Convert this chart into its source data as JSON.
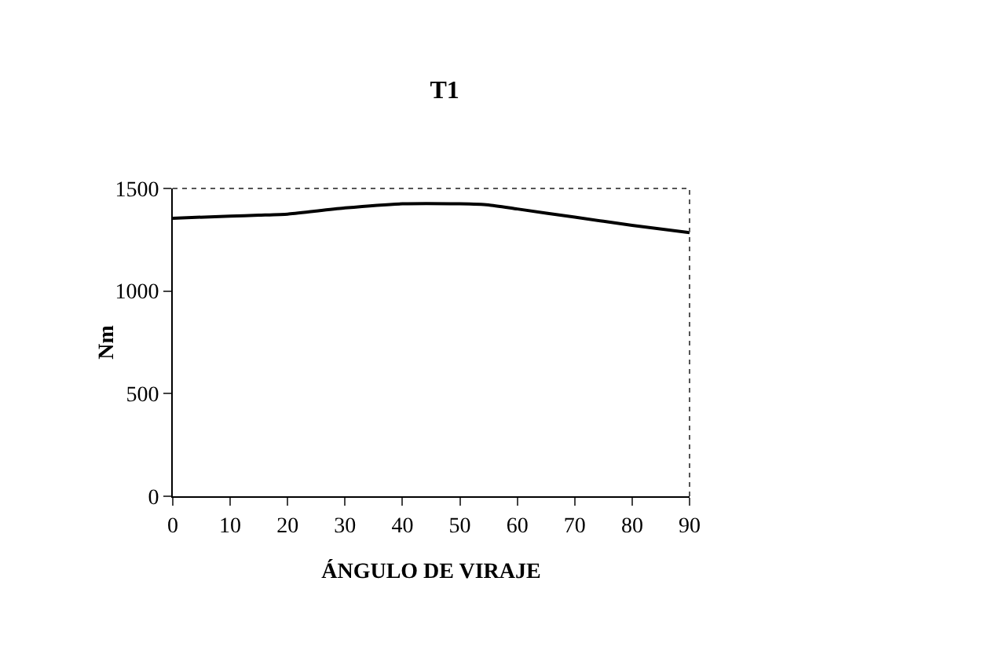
{
  "chart_data": {
    "type": "line",
    "title": "T1",
    "xlabel": "ÁNGULO DE VIRAJE",
    "ylabel": "Nm",
    "x": [
      0,
      10,
      15,
      20,
      25,
      30,
      40,
      50,
      55,
      60,
      70,
      80,
      90
    ],
    "series": [
      {
        "color": "#000000",
        "values": [
          1355,
          1365,
          1370,
          1375,
          1390,
          1405,
          1425,
          1425,
          1420,
          1400,
          1360,
          1320,
          1285
        ]
      }
    ],
    "xlim": [
      0,
      90
    ],
    "xticks": [
      0,
      10,
      20,
      30,
      40,
      50,
      60,
      70,
      80,
      90
    ],
    "ylim": [
      0,
      1500
    ],
    "yticks": [
      0,
      500,
      1000,
      1500
    ],
    "grid": false,
    "legend": false,
    "marker": "none",
    "line_style": "solid"
  }
}
